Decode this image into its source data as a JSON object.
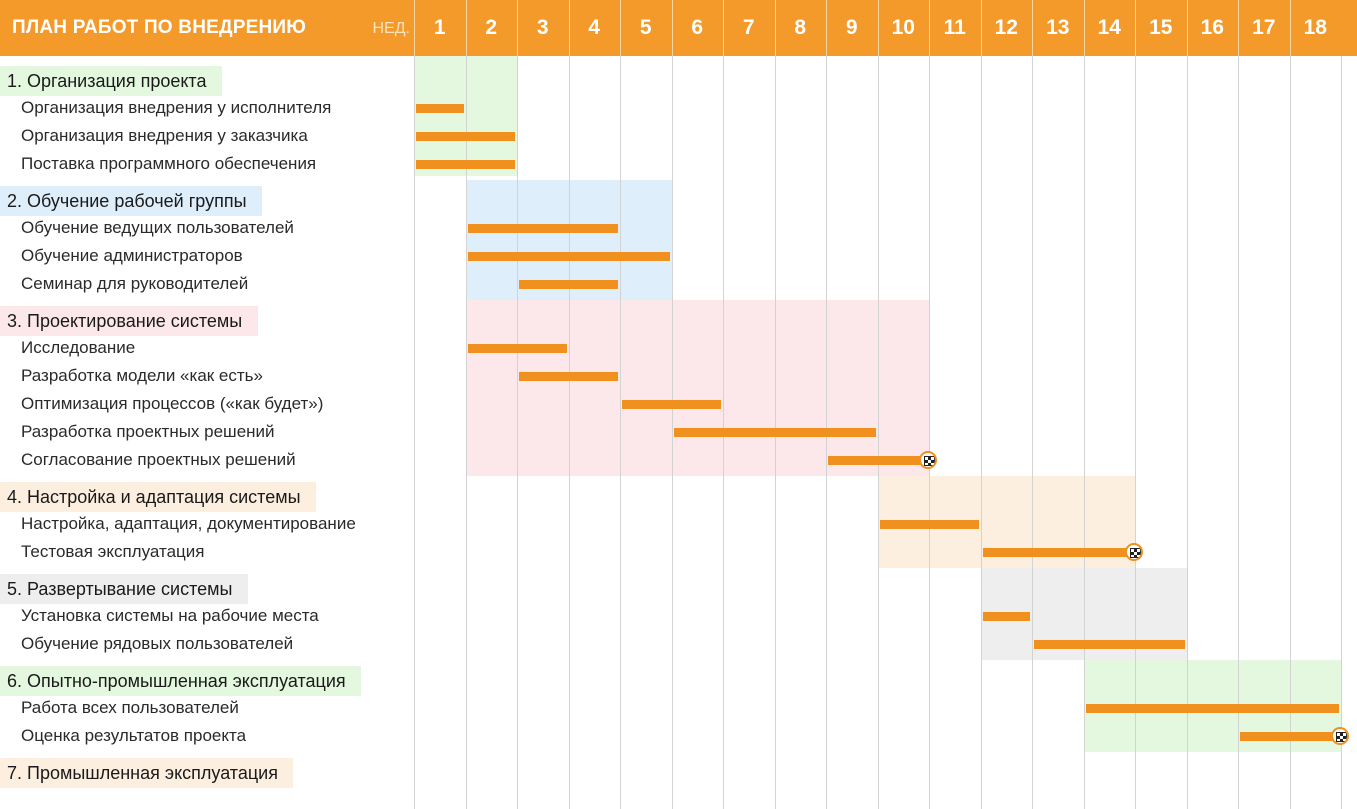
{
  "header": {
    "title": "ПЛАН РАБОТ ПО ВНЕДРЕНИЮ",
    "week_label": "НЕД."
  },
  "colors": {
    "header": "#f39a2b",
    "bar": "#f0901f",
    "group_1": "#e4f8df",
    "group_2": "#dfeefb",
    "group_3": "#fce8ea",
    "group_4": "#fdefdf",
    "group_5": "#eeeeee",
    "group_6": "#e4f8df",
    "group_7": "#fdefdf"
  },
  "chart_data": {
    "type": "gantt",
    "weeks": [
      "1",
      "2",
      "3",
      "4",
      "5",
      "6",
      "7",
      "8",
      "9",
      "10",
      "11",
      "12",
      "13",
      "14",
      "15",
      "16",
      "17",
      "18"
    ],
    "groups": [
      {
        "label": "1. Организация проекта",
        "color": "#e4f8df",
        "week_span": [
          1,
          2
        ],
        "tasks": [
          {
            "label": "Организация внедрения у исполнителя",
            "start": 1,
            "end": 1
          },
          {
            "label": "Организация внедрения у заказчика",
            "start": 1,
            "end": 2
          },
          {
            "label": "Поставка программного обеспечения",
            "start": 1,
            "end": 2
          }
        ]
      },
      {
        "label": "2. Обучение рабочей группы",
        "color": "#dfeefb",
        "week_span": [
          2,
          5
        ],
        "tasks": [
          {
            "label": "Обучение ведущих пользователей",
            "start": 2,
            "end": 4
          },
          {
            "label": "Обучение администраторов",
            "start": 2,
            "end": 5
          },
          {
            "label": "Семинар для руководителей",
            "start": 3,
            "end": 4
          }
        ]
      },
      {
        "label": "3. Проектирование системы",
        "color": "#fce8ea",
        "week_span": [
          2,
          10
        ],
        "tasks": [
          {
            "label": "Исследование",
            "start": 2,
            "end": 3
          },
          {
            "label": "Разработка модели «как есть»",
            "start": 3,
            "end": 4
          },
          {
            "label": "Оптимизация процессов («как будет»)",
            "start": 5,
            "end": 6
          },
          {
            "label": "Разработка проектных решений",
            "start": 6,
            "end": 9
          },
          {
            "label": "Согласование проектных решений",
            "start": 9,
            "end": 10,
            "milestone": true
          }
        ]
      },
      {
        "label": "4. Настройка и адаптация системы",
        "color": "#fdefdf",
        "week_span": [
          10,
          14
        ],
        "tasks": [
          {
            "label": "Настройка, адаптация, документирование",
            "start": 10,
            "end": 11
          },
          {
            "label": "Тестовая эксплуатация",
            "start": 12,
            "end": 14,
            "milestone": true
          }
        ]
      },
      {
        "label": "5. Развертывание системы",
        "color": "#eeeeee",
        "week_span": [
          12,
          15
        ],
        "tasks": [
          {
            "label": "Установка системы на рабочие места",
            "start": 12,
            "end": 12
          },
          {
            "label": "Обучение рядовых пользователей",
            "start": 13,
            "end": 15
          }
        ]
      },
      {
        "label": "6. Опытно-промышленная эксплуатация",
        "color": "#e4f8df",
        "week_span": [
          14,
          18
        ],
        "tasks": [
          {
            "label": "Работа всех пользователей",
            "start": 14,
            "end": 18
          },
          {
            "label": "Оценка результатов проекта",
            "start": 17,
            "end": 18,
            "milestone": true
          }
        ]
      },
      {
        "label": "7. Промышленная эксплуатация",
        "color": "#fdefdf",
        "week_span": null,
        "tasks": []
      }
    ]
  }
}
